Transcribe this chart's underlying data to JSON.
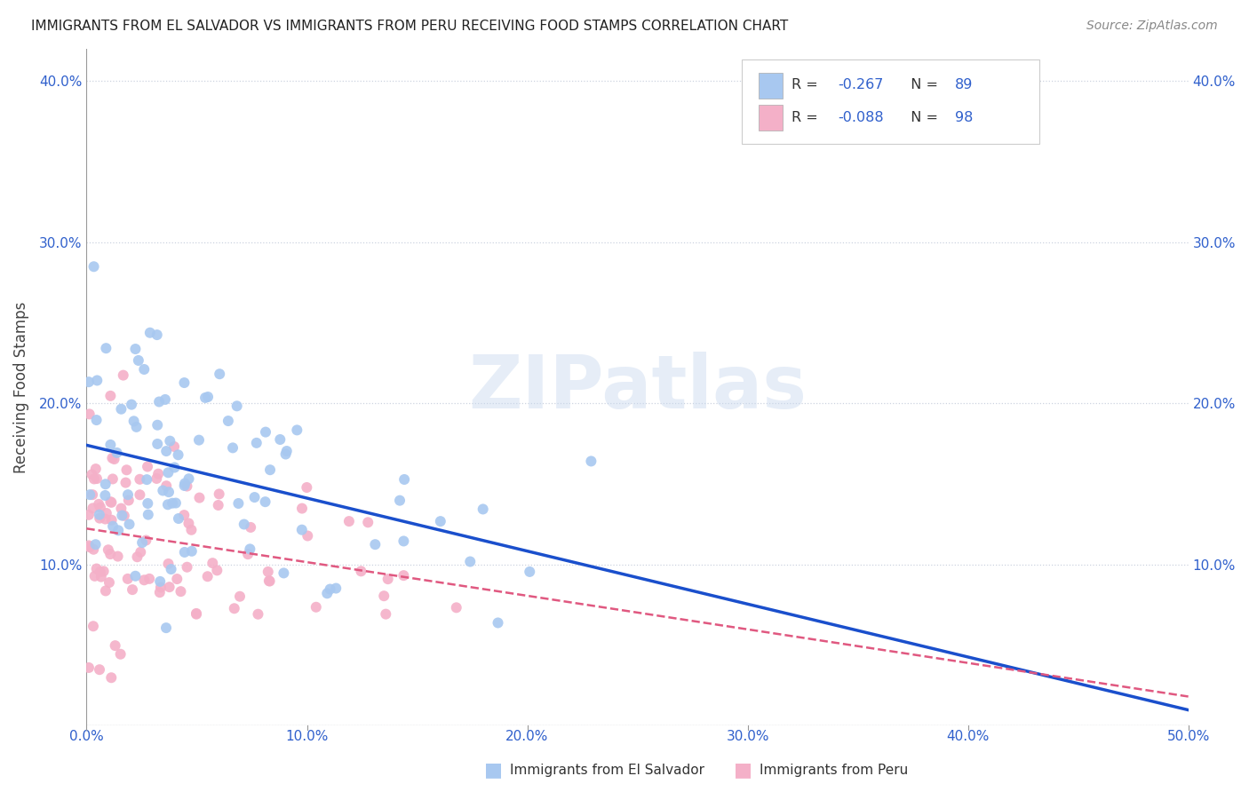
{
  "title": "IMMIGRANTS FROM EL SALVADOR VS IMMIGRANTS FROM PERU RECEIVING FOOD STAMPS CORRELATION CHART",
  "source": "Source: ZipAtlas.com",
  "ylabel": "Receiving Food Stamps",
  "xlim": [
    0.0,
    0.5
  ],
  "ylim": [
    0.0,
    0.42
  ],
  "xticks": [
    0.0,
    0.1,
    0.2,
    0.3,
    0.4,
    0.5
  ],
  "xticklabels": [
    "0.0%",
    "10.0%",
    "20.0%",
    "30.0%",
    "40.0%",
    "50.0%"
  ],
  "yticks_left": [
    0.0,
    0.1,
    0.2,
    0.3,
    0.4
  ],
  "yticklabels_left": [
    "",
    "10.0%",
    "20.0%",
    "30.0%",
    "40.0%"
  ],
  "yticks_right": [
    0.1,
    0.2,
    0.3,
    0.4
  ],
  "yticklabels_right": [
    "10.0%",
    "20.0%",
    "30.0%",
    "40.0%"
  ],
  "el_salvador_color": "#a8c8f0",
  "peru_color": "#f4b0c8",
  "el_salvador_line_color": "#1a4fcc",
  "peru_line_color": "#e05880",
  "background_color": "#ffffff",
  "watermark_text": "ZIPatlas",
  "legend_R_es": "-0.267",
  "legend_N_es": "89",
  "legend_R_pe": "-0.088",
  "legend_N_pe": "98",
  "n_es": 89,
  "n_pe": 98,
  "R_es": -0.267,
  "R_pe": -0.088,
  "seed_es": 7,
  "seed_pe": 13
}
